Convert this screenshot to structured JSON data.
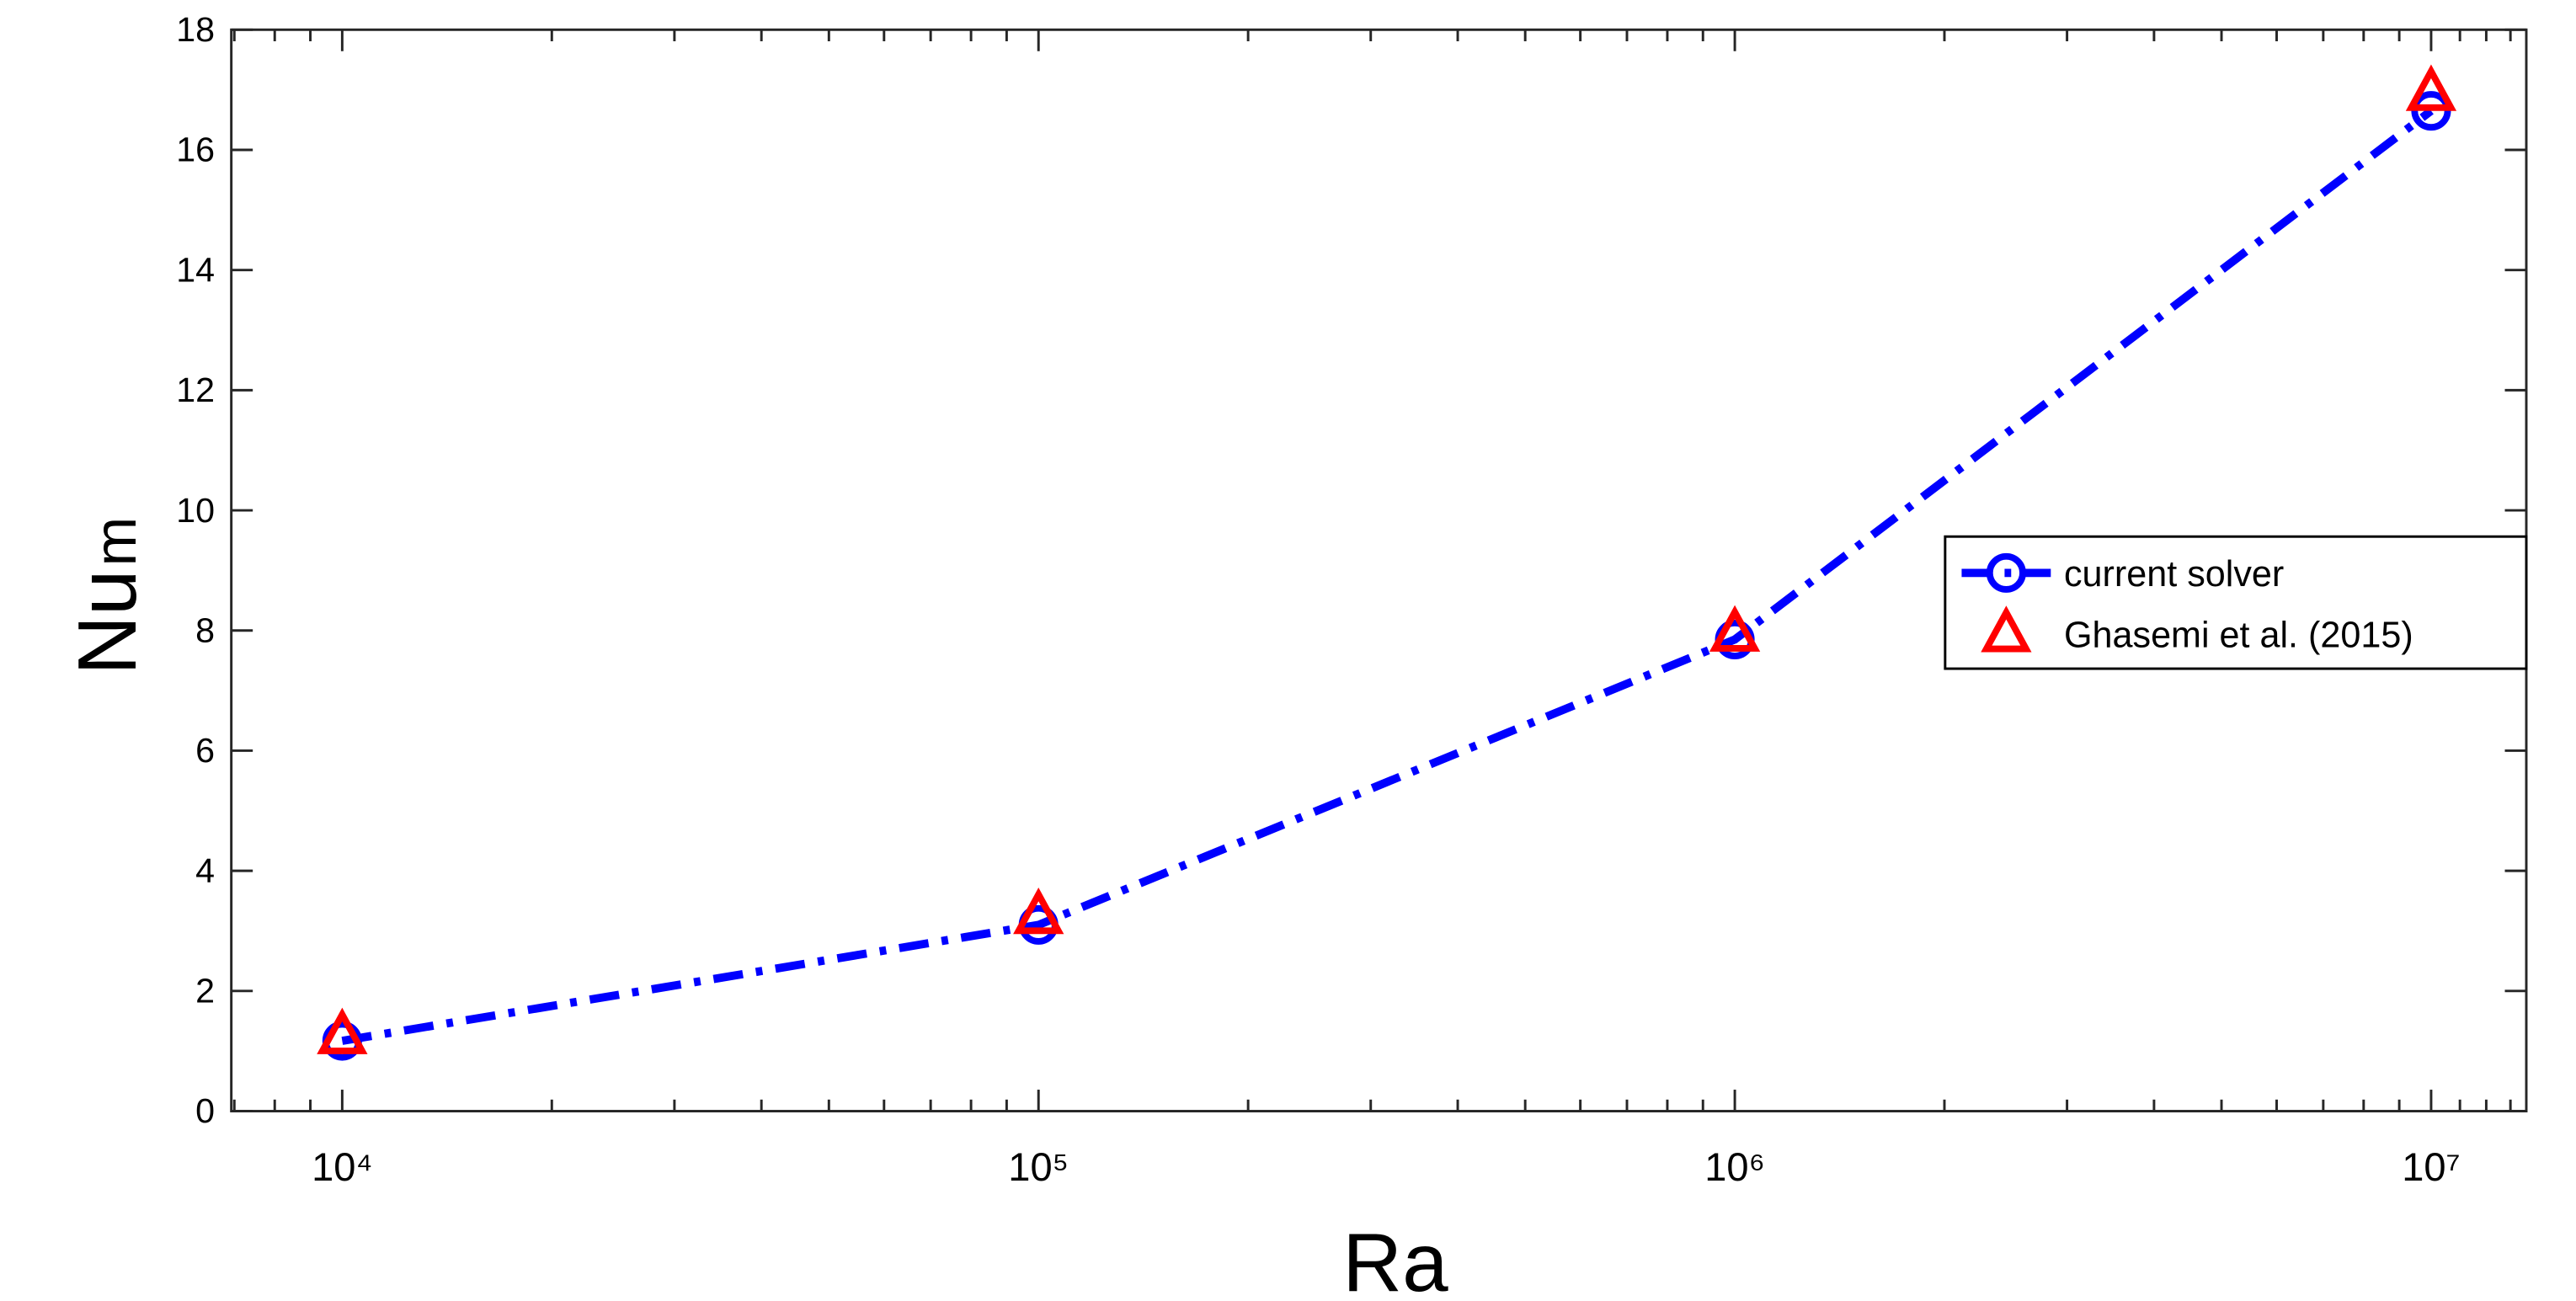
{
  "chart_data": {
    "type": "line",
    "xlabel": "Ra",
    "ylabel": "Nu",
    "ylabel_subscript": "m",
    "x": [
      10000,
      100000,
      1000000,
      10000000
    ],
    "xscale": "log",
    "xlim": [
      6930,
      13700000
    ],
    "xticks": [
      {
        "value": 10000,
        "label": "10⁴"
      },
      {
        "value": 100000,
        "label": "10⁵"
      },
      {
        "value": 1000000,
        "label": "10⁶"
      },
      {
        "value": 10000000,
        "label": "10⁷"
      }
    ],
    "xminorticks": [
      7000,
      8000,
      9000,
      20000,
      30000,
      40000,
      50000,
      60000,
      70000,
      80000,
      90000,
      200000,
      300000,
      400000,
      500000,
      600000,
      700000,
      800000,
      900000,
      2000000,
      3000000,
      4000000,
      5000000,
      6000000,
      7000000,
      8000000,
      9000000,
      11000000,
      12000000,
      13000000
    ],
    "ylim": [
      0,
      18
    ],
    "yticks": [
      0,
      2,
      4,
      6,
      8,
      10,
      12,
      14,
      16,
      18
    ],
    "legend": "right",
    "series": [
      {
        "name": "current solver",
        "color": "#0000ff",
        "marker": "circle",
        "line": "dashdot",
        "values": [
          1.17,
          3.1,
          7.85,
          16.65
        ]
      },
      {
        "name": "Ghasemi et al. (2015)",
        "color": "#ff0000",
        "marker": "triangle",
        "line": "none",
        "values": [
          1.25,
          3.25,
          7.95,
          16.95
        ]
      }
    ]
  }
}
